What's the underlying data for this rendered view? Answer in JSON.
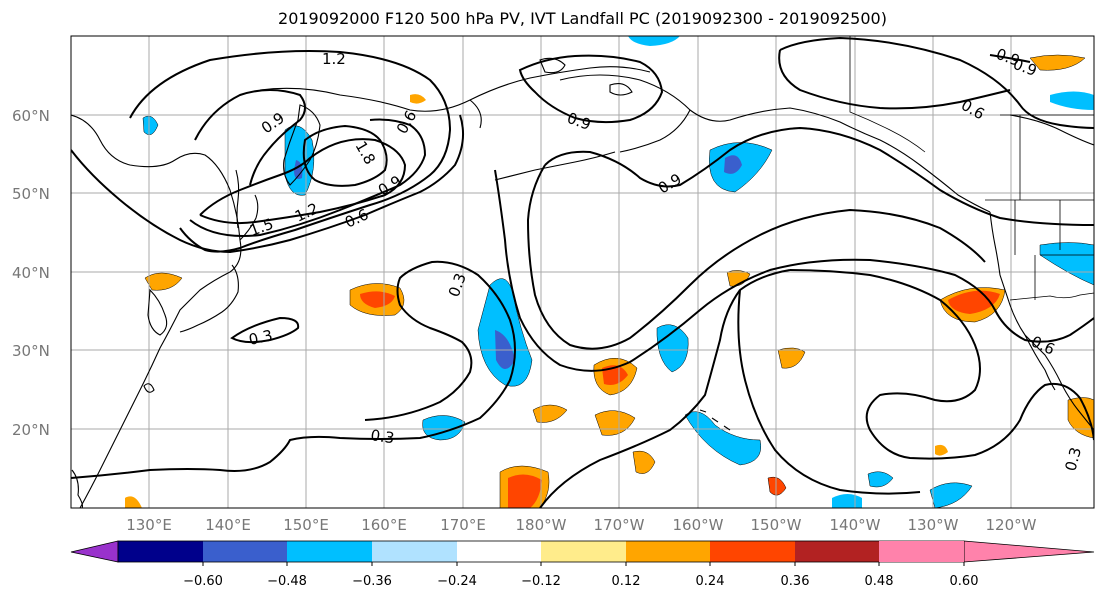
{
  "title": "2019092000 F120 500 hPa PV, IVT Landfall PC (2019092300 - 2019092500)",
  "axes": {
    "lat_labels": [
      "60°N",
      "50°N",
      "40°N",
      "30°N",
      "20°N"
    ],
    "lon_labels": [
      "130°E",
      "140°E",
      "150°E",
      "160°E",
      "170°E",
      "180°W",
      "170°W",
      "160°W",
      "150°W",
      "140°W",
      "130°W",
      "120°W"
    ]
  },
  "contour_labels": [
    "1.2",
    "0.9",
    "0.9",
    "0.9",
    "0.6",
    "0.9",
    "1.5",
    "1.2",
    "0.6",
    "0.9",
    "1.8",
    "0.3",
    "0.3",
    "0.3",
    "0.6",
    "0.3",
    "0.6",
    "0.9"
  ],
  "colorbar": {
    "colors": [
      "#9932cc",
      "#00008b",
      "#3a5fcd",
      "#00bfff",
      "#b0e2ff",
      "#ffffff",
      "#ffec8b",
      "#ffa500",
      "#ff4500",
      "#b22222",
      "#ff82ab"
    ],
    "ticks": [
      "−0.60",
      "−0.48",
      "−0.36",
      "−0.24",
      "−0.12",
      "0.12",
      "0.24",
      "0.36",
      "0.48",
      "0.60"
    ]
  }
}
